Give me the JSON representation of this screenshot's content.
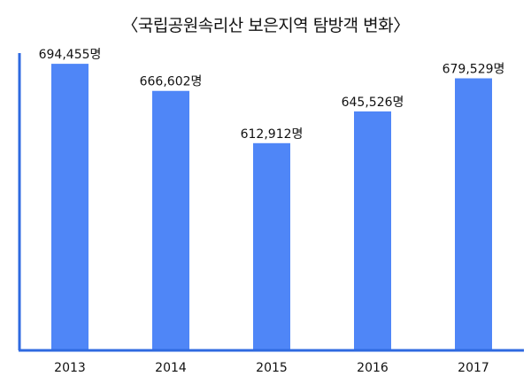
{
  "chart_data": {
    "type": "bar",
    "title": "〈국립공원속리산 보은지역 탐방객 변화〉",
    "categories": [
      "2013",
      "2014",
      "2015",
      "2016",
      "2017"
    ],
    "values": [
      694455,
      666602,
      612912,
      645526,
      679529
    ],
    "data_labels": [
      "694,455명",
      "666,602명",
      "612,912명",
      "645,526명",
      "679,529명"
    ],
    "xlabel": "",
    "ylabel": "",
    "ylim": [
      400000,
      720000
    ],
    "grid": false,
    "legend": "none",
    "colors": {
      "bar": "#4f86f7",
      "axis": "#2f6ae0"
    }
  }
}
